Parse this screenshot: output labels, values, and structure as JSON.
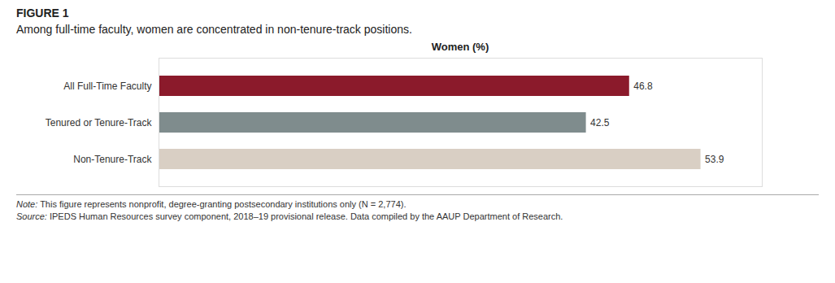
{
  "chart_data": {
    "type": "bar",
    "orientation": "horizontal",
    "title": "FIGURE 1",
    "subtitle": "Among full-time faculty, women are concentrated in non-tenure-track positions.",
    "x_label": "Women (%)",
    "categories": [
      "All Full-Time Faculty",
      "Tenured or Tenure-Track",
      "Non-Tenure-Track"
    ],
    "values": [
      46.8,
      42.5,
      53.9
    ],
    "colors": [
      "#8b1a2b",
      "#7f8c8d",
      "#d9cfc4"
    ],
    "xlim": [
      0,
      60
    ],
    "xticks": [],
    "tick_labels": "y",
    "data_labels": true,
    "grid": false,
    "annotations": [
      "Note: This figure represents nonprofit, degree-granting postsecondary institutions only (N = 2,774).",
      "Source: IPEDS Human Resources survey component, 2018–19 provisional release. Data compiled by the AAUP Department of Research."
    ]
  }
}
